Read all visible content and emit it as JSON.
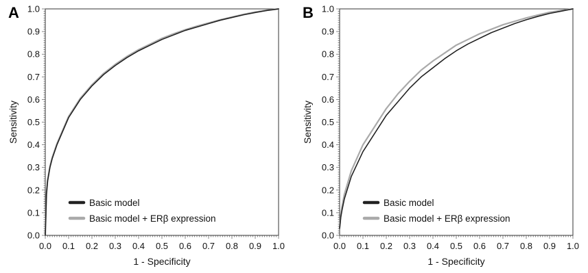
{
  "chart_data": [
    {
      "type": "line",
      "panel_label": "A",
      "xlabel": "1 - Specificity",
      "ylabel": "Sensitivity",
      "xlim": [
        0,
        1
      ],
      "ylim": [
        0,
        1
      ],
      "xticks": [
        "0.0",
        "0.1",
        "0.2",
        "0.3",
        "0.4",
        "0.5",
        "0.6",
        "0.7",
        "0.8",
        "0.9",
        "1.0"
      ],
      "yticks": [
        "0.0",
        "0.1",
        "0.2",
        "0.3",
        "0.4",
        "0.5",
        "0.6",
        "0.7",
        "0.8",
        "0.9",
        "1.0"
      ],
      "grid": false,
      "legend_position": "bottom-left",
      "series": [
        {
          "name": "Basic model",
          "color": "#222222",
          "x": [
            0,
            0.005,
            0.01,
            0.02,
            0.03,
            0.05,
            0.075,
            0.1,
            0.15,
            0.2,
            0.25,
            0.3,
            0.35,
            0.4,
            0.45,
            0.5,
            0.55,
            0.6,
            0.65,
            0.7,
            0.75,
            0.8,
            0.85,
            0.9,
            0.95,
            1.0
          ],
          "y": [
            0,
            0.18,
            0.24,
            0.3,
            0.34,
            0.4,
            0.46,
            0.52,
            0.6,
            0.66,
            0.71,
            0.75,
            0.785,
            0.815,
            0.84,
            0.865,
            0.885,
            0.905,
            0.92,
            0.935,
            0.95,
            0.962,
            0.974,
            0.984,
            0.993,
            1.0
          ]
        },
        {
          "name": "Basic model + ERβ expression",
          "color": "#aaaaaa",
          "x": [
            0,
            0.005,
            0.01,
            0.02,
            0.03,
            0.05,
            0.075,
            0.1,
            0.15,
            0.2,
            0.25,
            0.3,
            0.35,
            0.4,
            0.45,
            0.5,
            0.55,
            0.6,
            0.65,
            0.7,
            0.75,
            0.8,
            0.85,
            0.9,
            0.95,
            1.0
          ],
          "y": [
            0,
            0.185,
            0.245,
            0.305,
            0.345,
            0.405,
            0.465,
            0.525,
            0.605,
            0.665,
            0.715,
            0.755,
            0.79,
            0.82,
            0.845,
            0.87,
            0.89,
            0.908,
            0.924,
            0.938,
            0.952,
            0.964,
            0.976,
            0.986,
            0.994,
            1.0
          ]
        }
      ]
    },
    {
      "type": "line",
      "panel_label": "B",
      "xlabel": "1 - Specificity",
      "ylabel": "Sensitivity",
      "xlim": [
        0,
        1
      ],
      "ylim": [
        0,
        1
      ],
      "xticks": [
        "0.0",
        "0.1",
        "0.2",
        "0.3",
        "0.4",
        "0.5",
        "0.6",
        "0.7",
        "0.8",
        "0.9",
        "1.0"
      ],
      "yticks": [
        "0.0",
        "0.1",
        "0.2",
        "0.3",
        "0.4",
        "0.5",
        "0.6",
        "0.7",
        "0.8",
        "0.9",
        "1.0"
      ],
      "grid": false,
      "legend_position": "bottom-left",
      "series": [
        {
          "name": "Basic model",
          "color": "#222222",
          "x": [
            0,
            0.005,
            0.01,
            0.02,
            0.05,
            0.1,
            0.15,
            0.2,
            0.25,
            0.3,
            0.35,
            0.4,
            0.45,
            0.5,
            0.55,
            0.6,
            0.65,
            0.7,
            0.75,
            0.8,
            0.85,
            0.9,
            0.95,
            1.0
          ],
          "y": [
            0.03,
            0.08,
            0.11,
            0.16,
            0.26,
            0.37,
            0.45,
            0.53,
            0.59,
            0.65,
            0.7,
            0.74,
            0.78,
            0.815,
            0.845,
            0.87,
            0.895,
            0.915,
            0.935,
            0.952,
            0.967,
            0.98,
            0.99,
            1.0
          ]
        },
        {
          "name": "Basic model + ERβ expression",
          "color": "#aaaaaa",
          "x": [
            0,
            0.005,
            0.01,
            0.02,
            0.05,
            0.1,
            0.15,
            0.2,
            0.25,
            0.3,
            0.35,
            0.4,
            0.45,
            0.5,
            0.55,
            0.6,
            0.65,
            0.7,
            0.75,
            0.8,
            0.85,
            0.9,
            0.95,
            1.0
          ],
          "y": [
            0.035,
            0.09,
            0.125,
            0.18,
            0.285,
            0.4,
            0.48,
            0.56,
            0.625,
            0.68,
            0.73,
            0.77,
            0.805,
            0.84,
            0.865,
            0.89,
            0.91,
            0.93,
            0.945,
            0.96,
            0.973,
            0.985,
            0.993,
            1.0
          ]
        }
      ]
    }
  ]
}
